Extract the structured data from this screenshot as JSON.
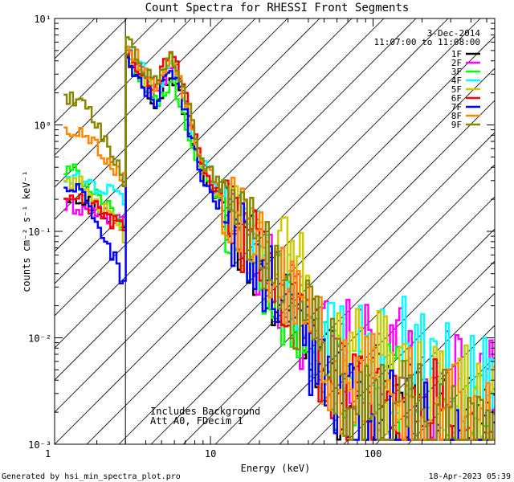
{
  "chart_data": {
    "type": "line",
    "title": "Count Spectra for RHESSI Front Segments",
    "xlabel": "Energy (keV)",
    "ylabel": "counts cm⁻² s⁻¹ keV⁻¹",
    "xscale": "log",
    "yscale": "log",
    "xlim": [
      1.1,
      560
    ],
    "ylim": [
      0.001,
      10
    ],
    "x_ticks": [
      {
        "value": 1,
        "label": "1"
      },
      {
        "value": 10,
        "label": "10"
      },
      {
        "value": 100,
        "label": "100"
      }
    ],
    "y_ticks": [
      {
        "value": 10,
        "label": "10¹"
      },
      {
        "value": 1,
        "label": "10⁰"
      },
      {
        "value": 0.1,
        "label": "10⁻¹"
      },
      {
        "value": 0.01,
        "label": "10⁻²"
      },
      {
        "value": 0.001,
        "label": "10⁻³"
      }
    ],
    "shaded_region_upper_kev": 3,
    "legend": {
      "position": "top-right",
      "date": "3-Dec-2014",
      "time_range": "11:07:00 to 11:08:00"
    },
    "annotations": [
      "Includes Background",
      "Att A0, FDecim 1"
    ],
    "series": [
      {
        "name": "1F",
        "color": "#000000",
        "peak": 2.7,
        "atten": 0.45,
        "low": 0.22,
        "low2": 0.1,
        "tail": 0.004,
        "line": 0
      },
      {
        "name": "2F",
        "color": "#ff00ff",
        "peak": 3.3,
        "atten": 0.5,
        "low": 0.17,
        "low2": 0.12,
        "tail": 0.012,
        "line": 0
      },
      {
        "name": "3F",
        "color": "#00ff00",
        "peak": 2.4,
        "atten": 0.45,
        "low": 0.36,
        "low2": 0.09,
        "tail": 0.005,
        "line": 0
      },
      {
        "name": "4F",
        "color": "#00ffff",
        "peak": 3.5,
        "atten": 0.6,
        "low": 0.3,
        "low2": 0.2,
        "tail": 0.014,
        "line": 0
      },
      {
        "name": "5F",
        "color": "#cccc00",
        "peak": 3.6,
        "atten": 0.5,
        "low": 0.3,
        "low2": 0.08,
        "tail": 0.009,
        "line": 0.07
      },
      {
        "name": "6F",
        "color": "#ff0000",
        "peak": 4.3,
        "atten": 0.5,
        "low": 0.2,
        "low2": 0.1,
        "tail": 0.005,
        "line": 0
      },
      {
        "name": "7F",
        "color": "#0000ff",
        "peak": 2.8,
        "atten": 0.4,
        "low": 0.25,
        "low2": 0.03,
        "tail": 0.003,
        "line": 0
      },
      {
        "name": "8F",
        "color": "#ff8800",
        "peak": 4.0,
        "atten": 0.6,
        "low": 0.9,
        "low2": 0.3,
        "tail": 0.005,
        "line": 0
      },
      {
        "name": "9F",
        "color": "#888800",
        "peak": 4.0,
        "atten": 0.6,
        "low": 1.8,
        "low2": 0.3,
        "tail": 0.004,
        "line": 0
      }
    ]
  },
  "footer": {
    "generated_by": "Generated by hsi_min_spectra_plot.pro",
    "timestamp": "18-Apr-2023 05:39"
  }
}
